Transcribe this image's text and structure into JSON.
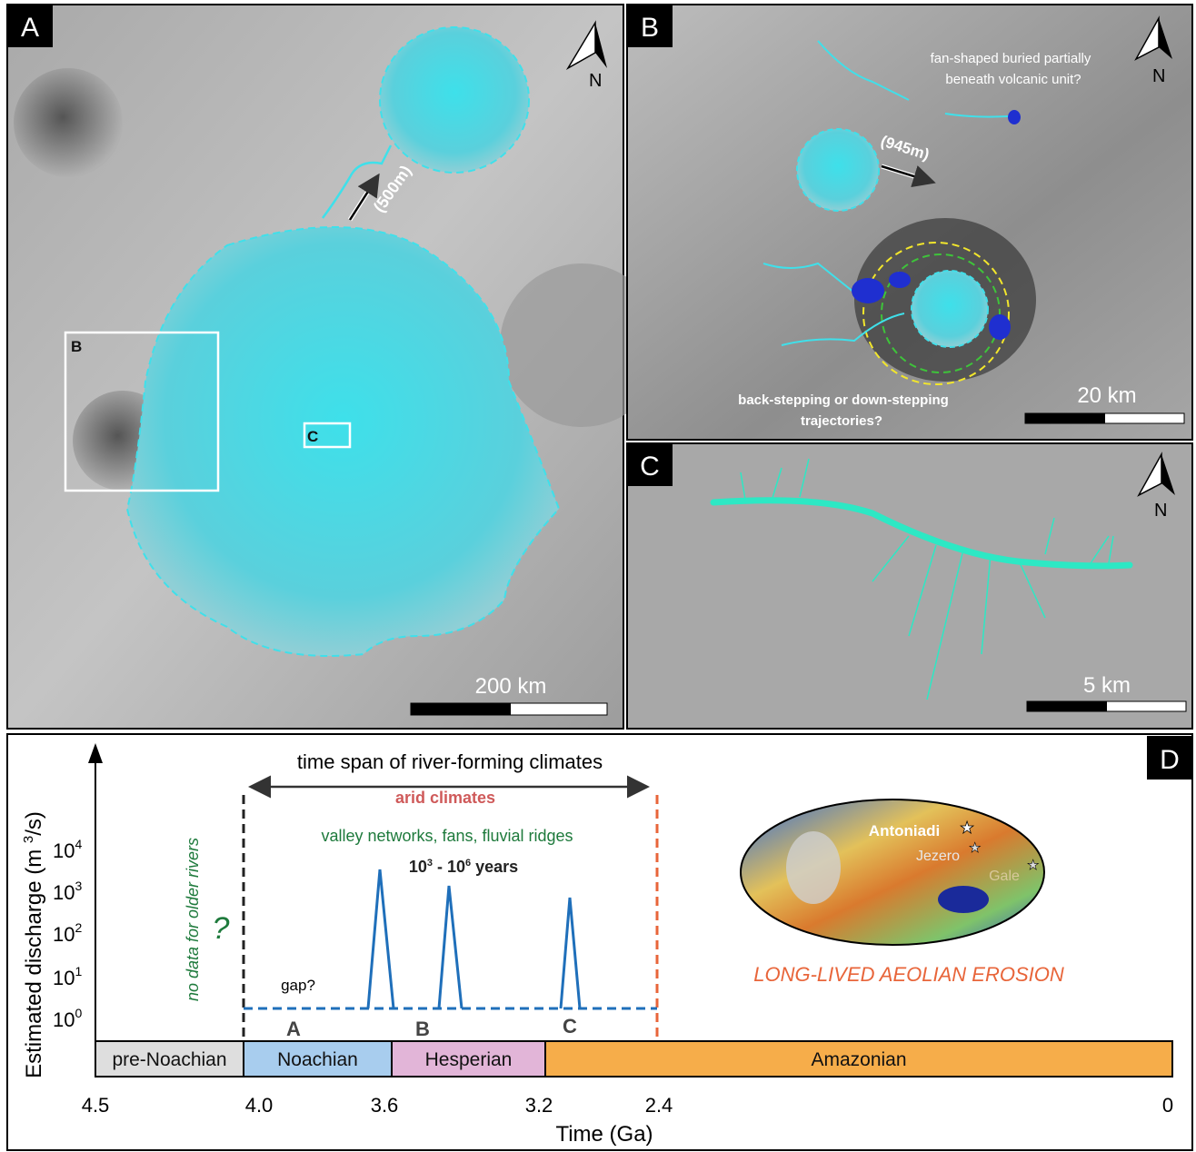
{
  "panel_a": {
    "label": "A",
    "north": "N",
    "elevation_note": "(500m)",
    "inset_b": "B",
    "inset_c": "C",
    "scale": "200 km"
  },
  "panel_b": {
    "label": "B",
    "north": "N",
    "note_top": [
      "fan-shaped buried partially",
      "beneath volcanic unit?"
    ],
    "elevation_note": "(945m)",
    "note_bottom": [
      "back-stepping or down-stepping",
      "trajectories?"
    ],
    "scale": "20 km"
  },
  "panel_c": {
    "label": "C",
    "north": "N",
    "scale": "5 km"
  },
  "panel_d": {
    "label": "D",
    "title": "time span of river-forming climates",
    "y_axis_label": {
      "before": "Estimated discharge (m ",
      "sup": "3",
      "after": "/s)"
    },
    "y_ticks": [
      {
        "base": "10",
        "exp": "4"
      },
      {
        "base": "10",
        "exp": "3"
      },
      {
        "base": "10",
        "exp": "2"
      },
      {
        "base": "10",
        "exp": "1"
      },
      {
        "base": "10",
        "exp": "0"
      }
    ],
    "arid": "arid climates",
    "features": "valley networks, fans, fluvial ridges",
    "duration": {
      "a": "10",
      "a_exp": "3",
      "mid": " - 10",
      "b_exp": "6",
      "end": " years"
    },
    "no_data": "no data for older rivers",
    "question": "?",
    "gap": "gap?",
    "episodes": [
      "A",
      "B",
      "C"
    ],
    "periods": [
      "pre-Noachian",
      "Noachian",
      "Hesperian",
      "Amazonian"
    ],
    "time_ticks": [
      "4.5",
      "4.0",
      "3.6",
      "3.2",
      "2.4",
      "0"
    ],
    "x_axis_label": "Time (Ga)",
    "map_labels": [
      "Antoniadi",
      "Jezero",
      "Gale"
    ],
    "aeolian": "LONG-LIVED AEOLIAN EROSION"
  }
}
